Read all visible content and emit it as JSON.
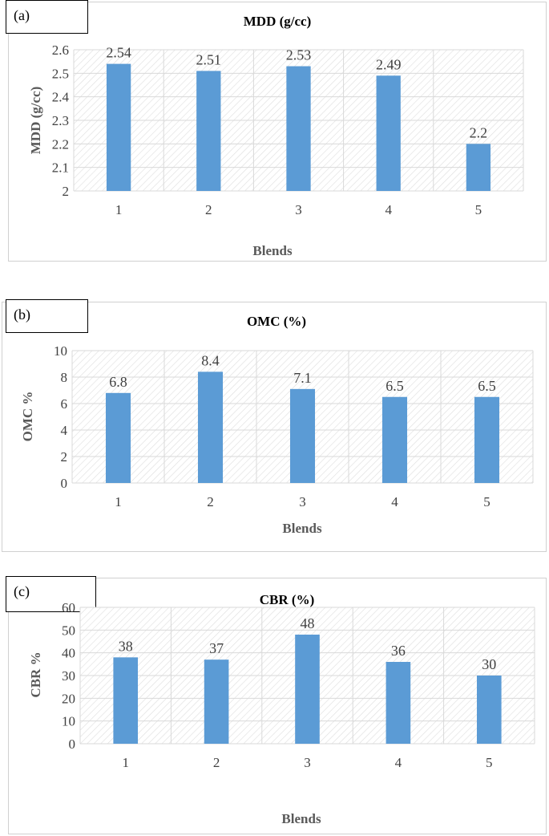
{
  "charts": [
    {
      "tag": "(a)",
      "chart_data": {
        "type": "bar",
        "title": "MDD (g/cc)",
        "xlabel": "Blends",
        "ylabel": "MDD (g/cc)",
        "categories": [
          "1",
          "2",
          "3",
          "4",
          "5"
        ],
        "values": [
          2.54,
          2.51,
          2.53,
          2.49,
          2.2
        ],
        "value_labels": [
          "2.54",
          "2.51",
          "2.53",
          "2.49",
          "2.2"
        ],
        "ylim": [
          2,
          2.6
        ],
        "yticks": [
          "2",
          "2.1",
          "2.2",
          "2.3",
          "2.4",
          "2.5",
          "2.6"
        ],
        "grid": true,
        "color": "#5b9bd5"
      }
    },
    {
      "tag": "(b)",
      "chart_data": {
        "type": "bar",
        "title": "OMC (%)",
        "xlabel": "Blends",
        "ylabel": "OMC %",
        "categories": [
          "1",
          "2",
          "3",
          "4",
          "5"
        ],
        "values": [
          6.8,
          8.4,
          7.1,
          6.5,
          6.5
        ],
        "value_labels": [
          "6.8",
          "8.4",
          "7.1",
          "6.5",
          "6.5"
        ],
        "ylim": [
          0,
          10
        ],
        "yticks": [
          "0",
          "2",
          "4",
          "6",
          "8",
          "10"
        ],
        "grid": true,
        "color": "#5b9bd5"
      }
    },
    {
      "tag": "(c)",
      "chart_data": {
        "type": "bar",
        "title": "CBR (%)",
        "xlabel": "Blends",
        "ylabel": "CBR %",
        "categories": [
          "1",
          "2",
          "3",
          "4",
          "5"
        ],
        "values": [
          38,
          37,
          48,
          36,
          30
        ],
        "value_labels": [
          "38",
          "37",
          "48",
          "36",
          "30"
        ],
        "ylim": [
          0,
          60
        ],
        "yticks": [
          "0",
          "10",
          "20",
          "30",
          "40",
          "50",
          "60"
        ],
        "grid": true,
        "color": "#5b9bd5"
      }
    }
  ]
}
